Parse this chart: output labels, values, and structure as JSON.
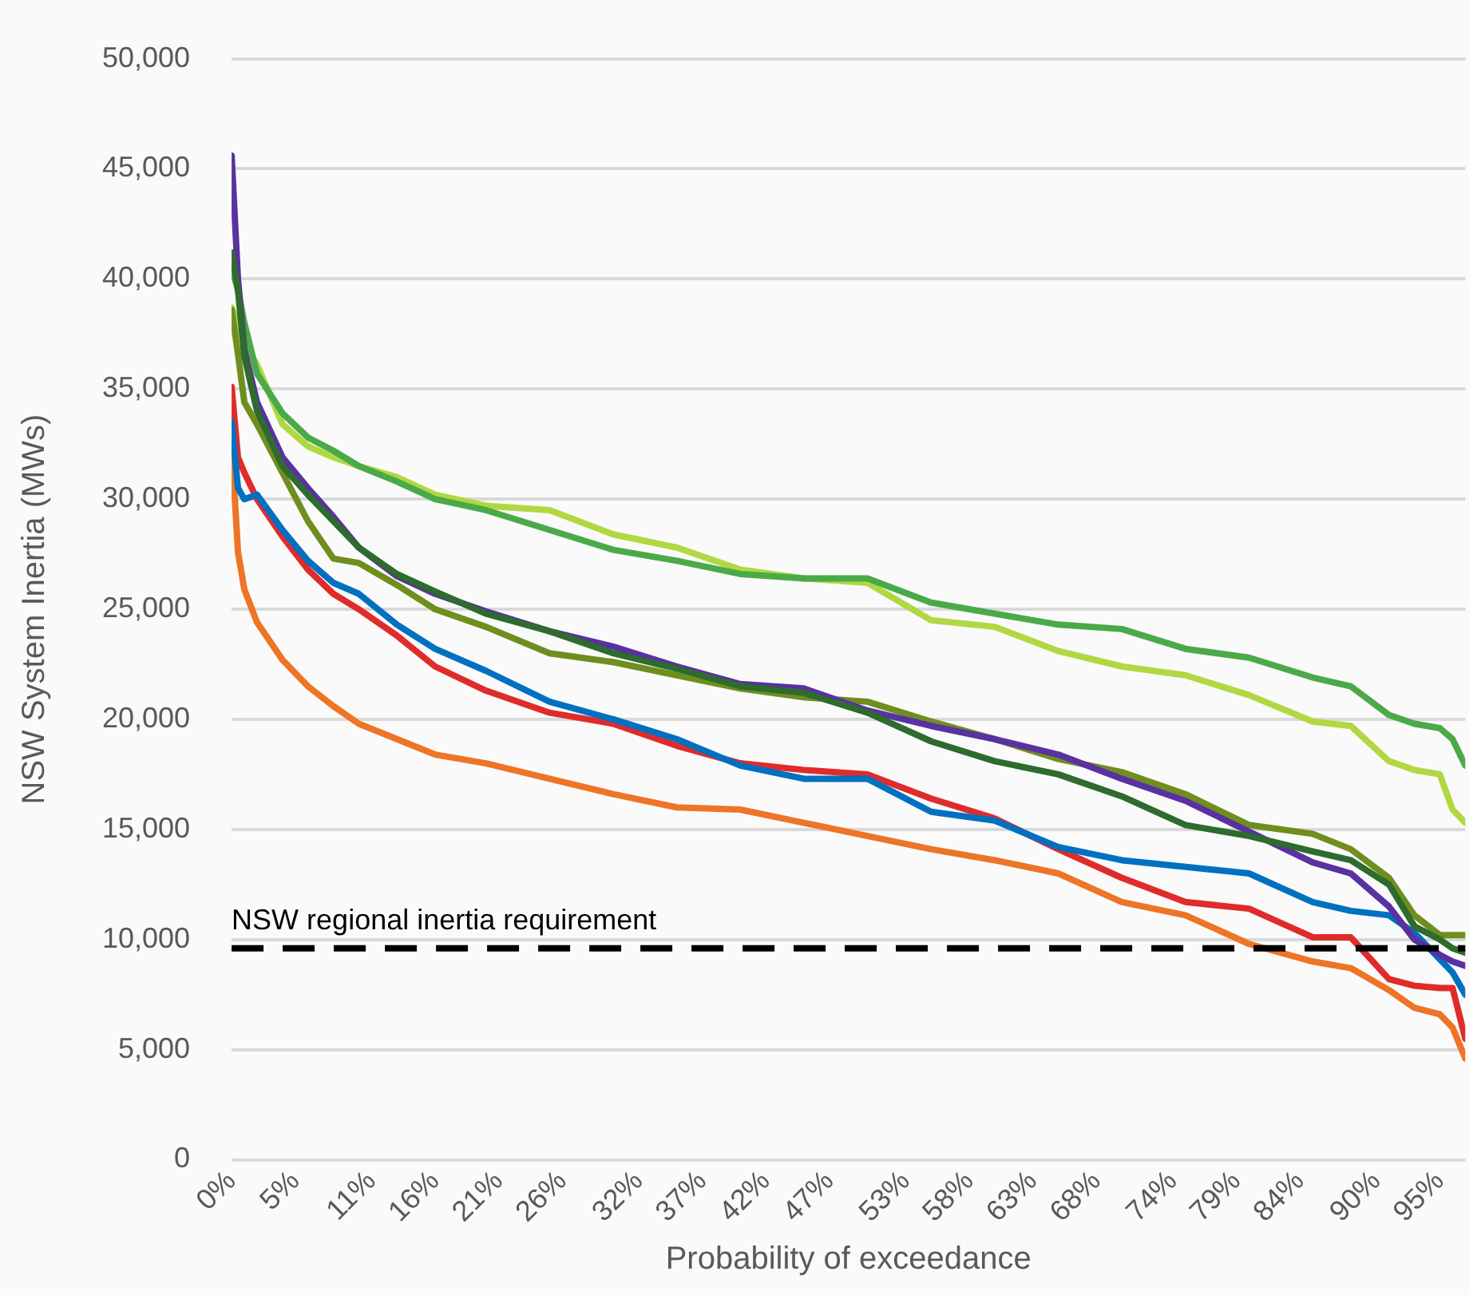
{
  "chart_data": {
    "type": "line",
    "xlabel": "Probability of exceedance",
    "ylabel": "NSW System Inertia (MWs)",
    "x": [
      0,
      0.5,
      1,
      2,
      4,
      6,
      8,
      10,
      13,
      16,
      20,
      25,
      30,
      35,
      40,
      45,
      50,
      55,
      60,
      65,
      70,
      75,
      80,
      85,
      88,
      91,
      93,
      95,
      96,
      97
    ],
    "xlim": [
      0,
      97
    ],
    "xticks": [
      {
        "value": 0,
        "label": "0%"
      },
      {
        "value": 5,
        "label": "5%"
      },
      {
        "value": 11,
        "label": "11%"
      },
      {
        "value": 16,
        "label": "16%"
      },
      {
        "value": 21,
        "label": "21%"
      },
      {
        "value": 26,
        "label": "26%"
      },
      {
        "value": 32,
        "label": "32%"
      },
      {
        "value": 37,
        "label": "37%"
      },
      {
        "value": 42,
        "label": "42%"
      },
      {
        "value": 47,
        "label": "47%"
      },
      {
        "value": 53,
        "label": "53%"
      },
      {
        "value": 58,
        "label": "58%"
      },
      {
        "value": 63,
        "label": "63%"
      },
      {
        "value": 68,
        "label": "68%"
      },
      {
        "value": 74,
        "label": "74%"
      },
      {
        "value": 79,
        "label": "79%"
      },
      {
        "value": 84,
        "label": "84%"
      },
      {
        "value": 90,
        "label": "90%"
      },
      {
        "value": 95,
        "label": "95%"
      }
    ],
    "ylim": [
      0,
      50000
    ],
    "yticks": [
      {
        "value": 0,
        "label": "0"
      },
      {
        "value": 5000,
        "label": "5,000"
      },
      {
        "value": 10000,
        "label": "10,000"
      },
      {
        "value": 15000,
        "label": "15,000"
      },
      {
        "value": 20000,
        "label": "20,000"
      },
      {
        "value": 25000,
        "label": "25,000"
      },
      {
        "value": 30000,
        "label": "30,000"
      },
      {
        "value": 35000,
        "label": "35,000"
      },
      {
        "value": 40000,
        "label": "40,000"
      },
      {
        "value": 45000,
        "label": "45,000"
      },
      {
        "value": 50000,
        "label": "50,000"
      }
    ],
    "grid": "y",
    "legend": false,
    "marker": "none",
    "line_style": "solid",
    "ref_lines": [
      {
        "axis": "y",
        "value": 9600,
        "label": "NSW regional inertia requirement",
        "color": "#000000",
        "line_style": "dashed"
      }
    ],
    "series": [
      {
        "color": "#2e6b2e",
        "values": [
          41200,
          39500,
          36500,
          34000,
          31500,
          30200,
          29000,
          27800,
          26600,
          25800,
          24800,
          24000,
          23000,
          22300,
          21500,
          21200,
          20300,
          19000,
          18100,
          17500,
          16500,
          15200,
          14700,
          14000,
          13600,
          12500,
          10600,
          10000,
          9600,
          9400
        ]
      },
      {
        "color": "#5a31a0",
        "values": [
          45600,
          40000,
          36800,
          34400,
          31900,
          30500,
          29200,
          27800,
          26500,
          25700,
          24900,
          24000,
          23300,
          22400,
          21600,
          21400,
          20400,
          19700,
          19100,
          18400,
          17300,
          16300,
          14900,
          13500,
          13000,
          11500,
          10000,
          9300,
          9000,
          8800
        ]
      },
      {
        "color": "#6f8e1e",
        "values": [
          38600,
          36600,
          34400,
          33400,
          31200,
          29000,
          27300,
          27100,
          26100,
          25000,
          24200,
          23000,
          22600,
          22000,
          21400,
          21000,
          20800,
          19900,
          19100,
          18200,
          17600,
          16600,
          15200,
          14800,
          14100,
          12800,
          11100,
          10200,
          10200,
          10200
        ]
      },
      {
        "color": "#4aaa48",
        "values": [
          40500,
          39500,
          38000,
          35700,
          33900,
          32800,
          32200,
          31500,
          30800,
          30000,
          29500,
          28600,
          27700,
          27200,
          26600,
          26400,
          26400,
          25300,
          24800,
          24300,
          24100,
          23200,
          22800,
          21900,
          21500,
          20200,
          19800,
          19600,
          19100,
          17900
        ]
      },
      {
        "color": "#b0d842",
        "values": [
          38700,
          38000,
          37000,
          36100,
          33400,
          32400,
          31900,
          31500,
          31000,
          30200,
          29700,
          29500,
          28400,
          27800,
          26800,
          26400,
          26200,
          24500,
          24200,
          23100,
          22400,
          22000,
          21100,
          19900,
          19700,
          18100,
          17700,
          17500,
          15900,
          15300
        ]
      },
      {
        "color": "#0070c0",
        "values": [
          33500,
          30500,
          30000,
          30200,
          28600,
          27200,
          26200,
          25700,
          24300,
          23200,
          22200,
          20800,
          20000,
          19100,
          17900,
          17300,
          17300,
          15800,
          15400,
          14200,
          13600,
          13300,
          13000,
          11700,
          11300,
          11100,
          10300,
          9100,
          8500,
          7500
        ]
      },
      {
        "color": "#e02b2b",
        "values": [
          35100,
          31900,
          31200,
          30000,
          28300,
          26800,
          25700,
          25000,
          23800,
          22400,
          21300,
          20300,
          19800,
          18800,
          18000,
          17700,
          17500,
          16400,
          15500,
          14100,
          12800,
          11700,
          11400,
          10100,
          10100,
          8200,
          7900,
          7800,
          7800,
          5500
        ]
      },
      {
        "color": "#ee7426",
        "values": [
          32500,
          27600,
          25900,
          24400,
          22700,
          21500,
          20600,
          19800,
          19100,
          18400,
          18000,
          17300,
          16600,
          16000,
          15900,
          15300,
          14700,
          14100,
          13600,
          13000,
          11700,
          11100,
          9800,
          9000,
          8700,
          7700,
          6900,
          6600,
          6000,
          4600
        ]
      }
    ]
  }
}
